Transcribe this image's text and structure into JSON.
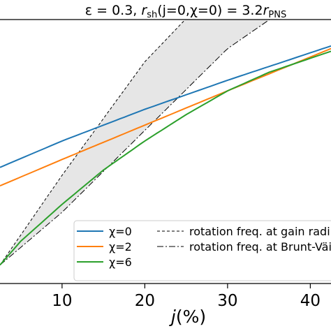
{
  "chart_data": {
    "type": "line",
    "title": "ε = 0.3, r_sh(j=0,χ=0) = 3.2r_PNS",
    "title_parts": {
      "prefix": "ε = 0.3, ",
      "r1": "r",
      "sub1": "sh",
      "mid": "(j=0,χ=0) = 3.2",
      "r2": "r",
      "sub2": "PNS"
    },
    "xlabel": "j(%)",
    "xlabel_parts": {
      "var": "j",
      "rest": "(%)"
    },
    "ylabel": "",
    "xlim": [
      2.5,
      42.5
    ],
    "ylim": [
      0,
      1
    ],
    "xticks": [
      10,
      20,
      30,
      40
    ],
    "xtick_labels": [
      "10",
      "20",
      "30",
      "40"
    ],
    "grid": false,
    "legend_location": "lower-right",
    "series": [
      {
        "name": "χ=0",
        "color": "#1f77b4",
        "style": "solid",
        "x": [
          2.5,
          10,
          20,
          30,
          42.5
        ],
        "y": [
          0.44,
          0.54,
          0.66,
          0.77,
          0.9
        ]
      },
      {
        "name": "χ=2",
        "color": "#ff7f0e",
        "style": "solid",
        "x": [
          2.5,
          10,
          20,
          30,
          42.5
        ],
        "y": [
          0.37,
          0.47,
          0.6,
          0.73,
          0.89
        ]
      },
      {
        "name": "χ=6",
        "color": "#2ca02c",
        "style": "solid",
        "x": [
          2.5,
          5,
          10,
          15,
          20,
          25,
          30,
          35,
          42.5
        ],
        "y": [
          0.07,
          0.16,
          0.3,
          0.43,
          0.54,
          0.64,
          0.73,
          0.8,
          0.88
        ]
      },
      {
        "name": "rotation freq. at gain radius",
        "color": "#000000",
        "style": "dashed",
        "x": [
          2.5,
          10,
          20,
          25.5
        ],
        "y": [
          0.07,
          0.41,
          0.84,
          1.02
        ]
      },
      {
        "name": "rotation freq. at Brunt-Väisälä radius",
        "color": "#000000",
        "style": "dashdot",
        "x": [
          2.5,
          10,
          20,
          30,
          36
        ],
        "y": [
          0.07,
          0.27,
          0.58,
          0.89,
          1.02
        ]
      }
    ],
    "shaded_region": {
      "between": [
        "rotation freq. at gain radius",
        "rotation freq. at Brunt-Väisälä radius"
      ],
      "color": "#e6e6e6"
    },
    "legend_entries": [
      {
        "label": "χ=0",
        "color": "#1f77b4",
        "style": "solid"
      },
      {
        "label": "χ=2",
        "color": "#ff7f0e",
        "style": "solid"
      },
      {
        "label": "χ=6",
        "color": "#2ca02c",
        "style": "solid"
      },
      {
        "label": "rotation freq. at gain radius",
        "color": "#000000",
        "style": "dashed"
      },
      {
        "label": "rotation freq. at Brunt-Väisälä radius",
        "color": "#000000",
        "style": "dashdot"
      }
    ]
  }
}
